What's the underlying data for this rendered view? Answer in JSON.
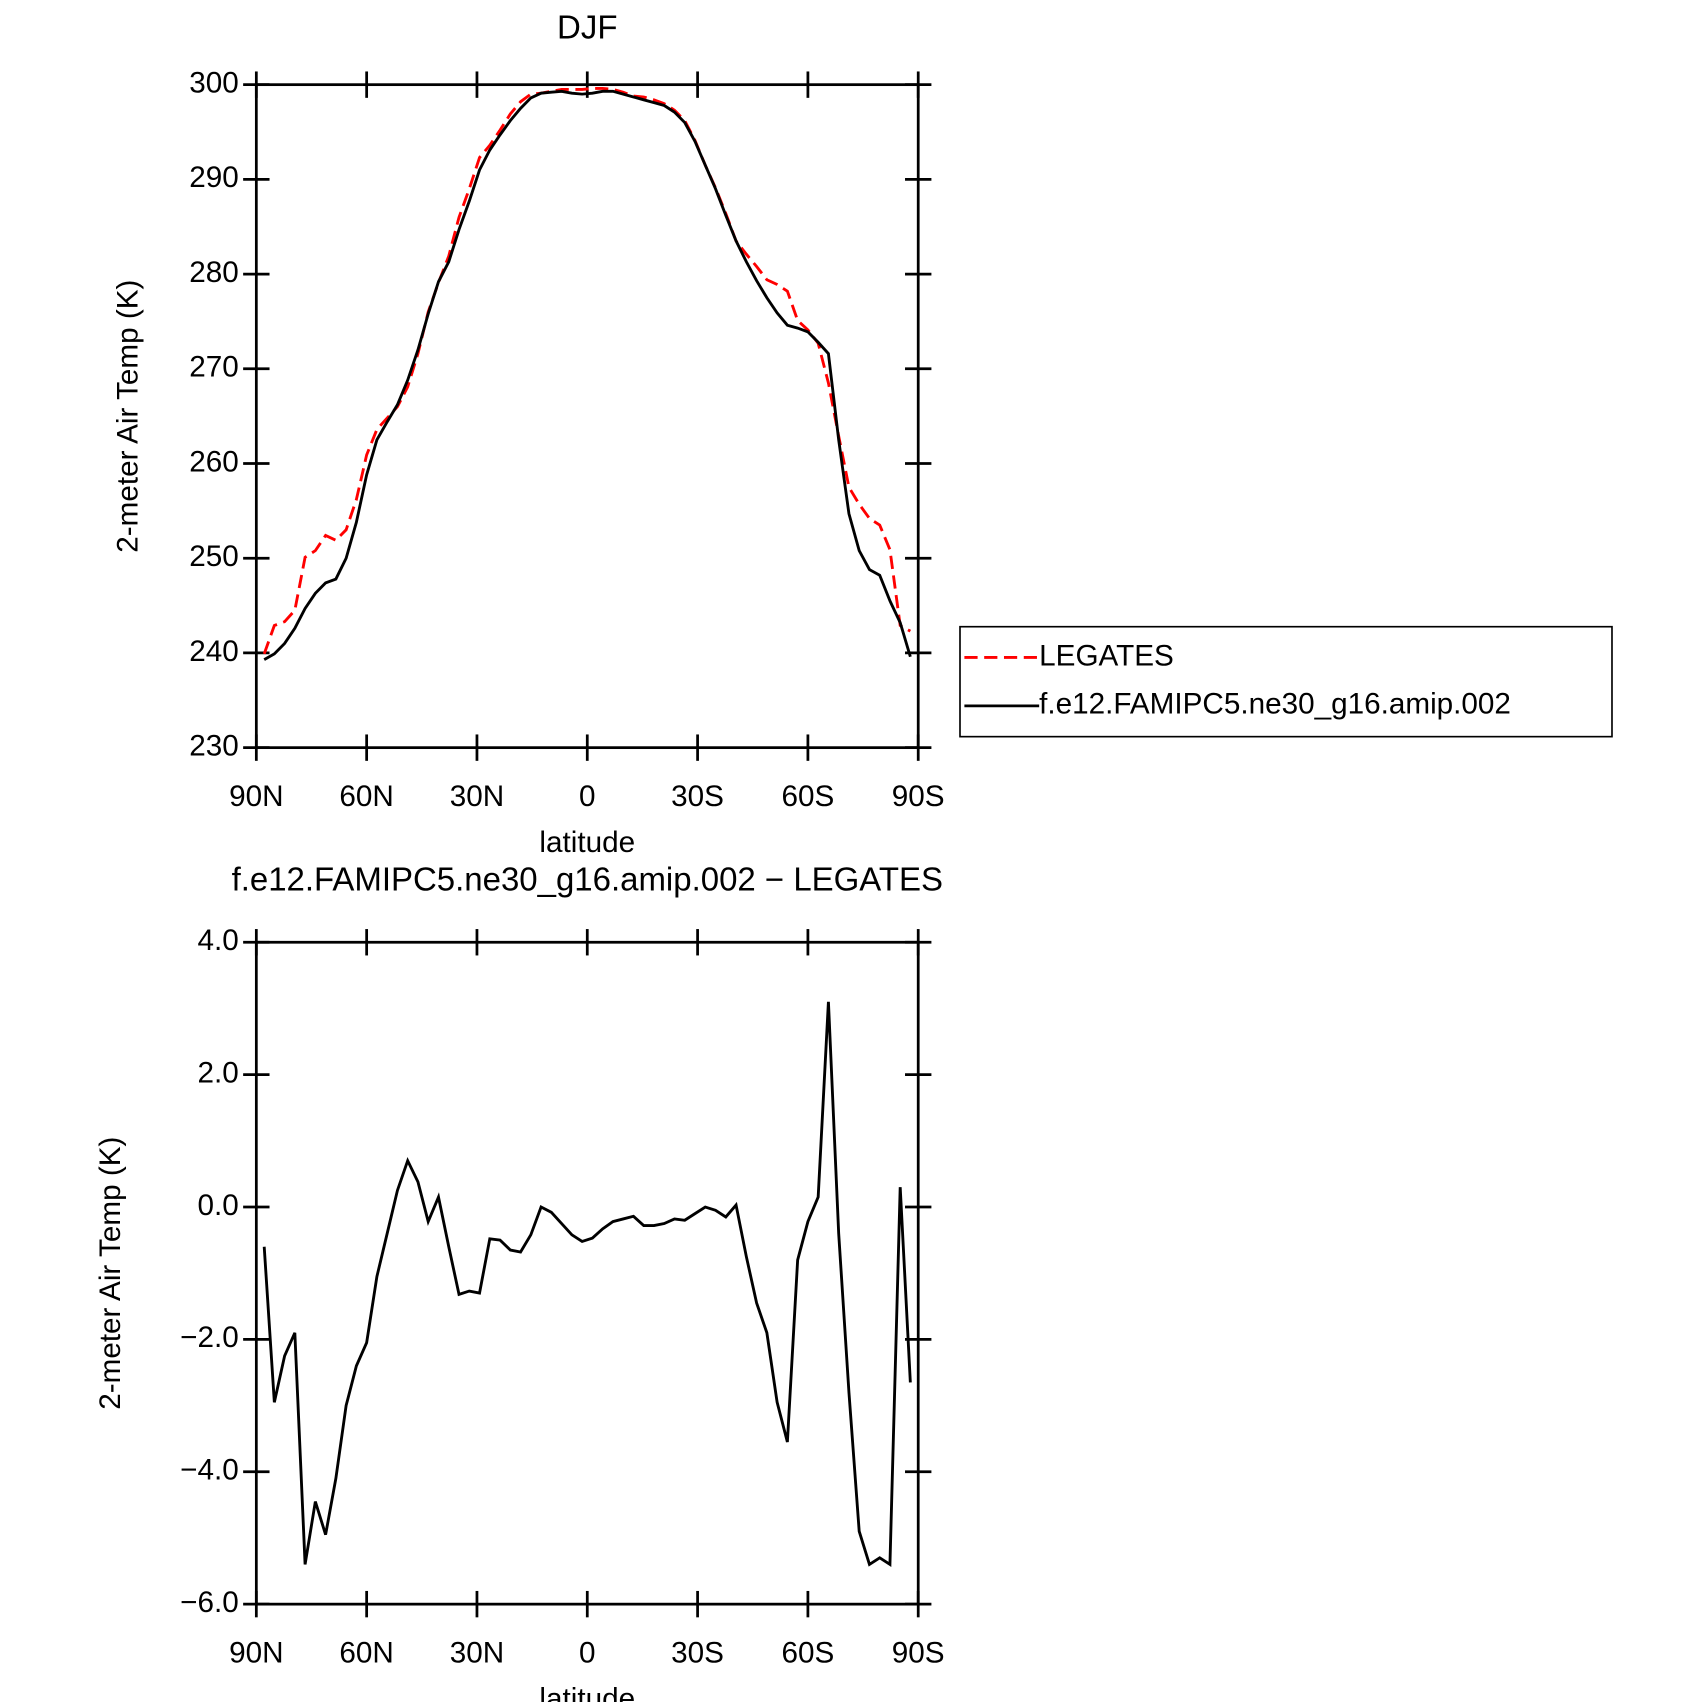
{
  "chart_data": [
    {
      "type": "line",
      "title": "DJF",
      "xlabel": "latitude",
      "ylabel": "2-meter Air Temp (K)",
      "x": [
        87.86,
        85.1,
        82.31,
        79.53,
        76.74,
        73.95,
        71.16,
        68.37,
        65.58,
        62.79,
        60.0,
        57.21,
        54.42,
        51.63,
        48.84,
        46.05,
        43.26,
        40.46,
        37.67,
        34.88,
        32.09,
        29.3,
        26.51,
        23.72,
        20.93,
        18.14,
        15.35,
        12.56,
        9.77,
        6.98,
        4.19,
        1.4,
        -1.4,
        -4.19,
        -6.98,
        -9.77,
        -12.56,
        -15.35,
        -18.14,
        -20.93,
        -23.72,
        -26.51,
        -29.3,
        -32.09,
        -34.88,
        -37.67,
        -40.46,
        -43.26,
        -46.05,
        -48.84,
        -51.63,
        -54.42,
        -57.21,
        -60.0,
        -62.79,
        -65.58,
        -68.37,
        -71.16,
        -73.95,
        -76.74,
        -79.53,
        -82.31,
        -85.1,
        -87.86
      ],
      "series": [
        {
          "name": "LEGATES",
          "color": "#ff0000",
          "line_style": "dashed",
          "values": [
            239.9,
            242.9,
            243.3,
            244.5,
            250.1,
            250.8,
            252.4,
            251.9,
            253.0,
            256.2,
            260.9,
            263.6,
            264.8,
            266.0,
            268.1,
            271.6,
            276.0,
            279.1,
            281.9,
            286.0,
            289.0,
            292.3,
            293.6,
            295.2,
            296.9,
            298.2,
            299.0,
            299.1,
            299.3,
            299.5,
            299.5,
            299.5,
            299.6,
            299.6,
            299.5,
            299.2,
            298.8,
            298.7,
            298.4,
            298.0,
            297.3,
            296.2,
            294.1,
            291.5,
            289.1,
            286.4,
            283.5,
            282.1,
            280.8,
            279.4,
            278.9,
            278.2,
            275.1,
            274.1,
            272.7,
            268.5,
            262.9,
            257.5,
            255.7,
            254.2,
            253.5,
            250.9,
            242.9,
            242.3
          ]
        },
        {
          "name": "f.e12.FAMIPC5.ne30_g16.amip.002",
          "color": "#000000",
          "line_style": "solid",
          "values": [
            239.3,
            239.9,
            241.0,
            242.6,
            244.7,
            246.3,
            247.4,
            247.8,
            250.0,
            253.8,
            258.8,
            262.5,
            264.4,
            266.2,
            268.8,
            272.0,
            275.8,
            279.2,
            281.3,
            284.7,
            287.7,
            291.0,
            293.1,
            294.7,
            296.2,
            297.5,
            298.6,
            299.1,
            299.2,
            299.3,
            299.1,
            299.0,
            299.1,
            299.3,
            299.3,
            299.0,
            298.7,
            298.4,
            298.1,
            297.8,
            297.1,
            296.0,
            294.0,
            291.5,
            289.0,
            286.2,
            283.5,
            281.3,
            279.3,
            277.5,
            275.9,
            274.6,
            274.3,
            273.9,
            272.8,
            271.6,
            262.5,
            254.7,
            250.8,
            248.8,
            248.2,
            245.5,
            243.2,
            239.6
          ]
        }
      ],
      "xlim": [
        90,
        -90
      ],
      "xticks": [
        {
          "value": 90,
          "label": "90N"
        },
        {
          "value": 60,
          "label": "60N"
        },
        {
          "value": 30,
          "label": "30N"
        },
        0,
        {
          "value": -30,
          "label": "30S"
        },
        {
          "value": -60,
          "label": "60S"
        },
        {
          "value": -90,
          "label": "90S"
        }
      ],
      "ylim": [
        230,
        300
      ],
      "yticks": [
        230,
        240,
        250,
        260,
        270,
        280,
        290,
        300
      ],
      "legend": true
    },
    {
      "type": "line",
      "title": "f.e12.FAMIPC5.ne30_g16.amip.002 − LEGATES",
      "xlabel": "latitude",
      "ylabel": "2-meter Air Temp (K)",
      "x": [
        87.86,
        85.1,
        82.31,
        79.53,
        76.74,
        73.95,
        71.16,
        68.37,
        65.58,
        62.79,
        60.0,
        57.21,
        54.42,
        51.63,
        48.84,
        46.05,
        43.26,
        40.46,
        37.67,
        34.88,
        32.09,
        29.3,
        26.51,
        23.72,
        20.93,
        18.14,
        15.35,
        12.56,
        9.77,
        6.98,
        4.19,
        1.4,
        -1.4,
        -4.19,
        -6.98,
        -9.77,
        -12.56,
        -15.35,
        -18.14,
        -20.93,
        -23.72,
        -26.51,
        -29.3,
        -32.09,
        -34.88,
        -37.67,
        -40.46,
        -43.26,
        -46.05,
        -48.84,
        -51.63,
        -54.42,
        -57.21,
        -60.0,
        -62.79,
        -65.58,
        -68.37,
        -71.16,
        -73.95,
        -76.74,
        -79.53,
        -82.31,
        -85.1,
        -87.86
      ],
      "series": [
        {
          "color": "#000000",
          "line_style": "solid",
          "values": [
            -0.6,
            -2.95,
            -2.25,
            -1.9,
            -5.4,
            -4.45,
            -4.95,
            -4.1,
            -3.0,
            -2.4,
            -2.05,
            -1.05,
            -0.4,
            0.25,
            0.7,
            0.38,
            -0.22,
            0.15,
            -0.6,
            -1.32,
            -1.27,
            -1.3,
            -0.48,
            -0.5,
            -0.65,
            -0.68,
            -0.42,
            0.0,
            -0.08,
            -0.25,
            -0.42,
            -0.52,
            -0.47,
            -0.33,
            -0.22,
            -0.18,
            -0.14,
            -0.28,
            -0.28,
            -0.25,
            -0.18,
            -0.2,
            -0.1,
            0.0,
            -0.05,
            -0.15,
            0.03,
            -0.75,
            -1.45,
            -1.9,
            -2.95,
            -3.55,
            -0.8,
            -0.22,
            0.15,
            3.1,
            -0.4,
            -2.8,
            -4.9,
            -5.4,
            -5.3,
            -5.4,
            0.3,
            -2.65
          ]
        }
      ],
      "xlim": [
        90,
        -90
      ],
      "xticks": [
        {
          "value": 90,
          "label": "90N"
        },
        {
          "value": 60,
          "label": "60N"
        },
        {
          "value": 30,
          "label": "30N"
        },
        0,
        {
          "value": -30,
          "label": "30S"
        },
        {
          "value": -60,
          "label": "60S"
        },
        {
          "value": -90,
          "label": "90S"
        }
      ],
      "ylim": [
        -6,
        4
      ],
      "yticks": [
        {
          "value": -6,
          "label": "−6.0"
        },
        {
          "value": -4,
          "label": "−4.0"
        },
        {
          "value": -2,
          "label": "−2.0"
        },
        {
          "value": 0,
          "label": "0.0"
        },
        {
          "value": 2,
          "label": "2.0"
        },
        {
          "value": 4,
          "label": "4.0"
        }
      ]
    }
  ]
}
